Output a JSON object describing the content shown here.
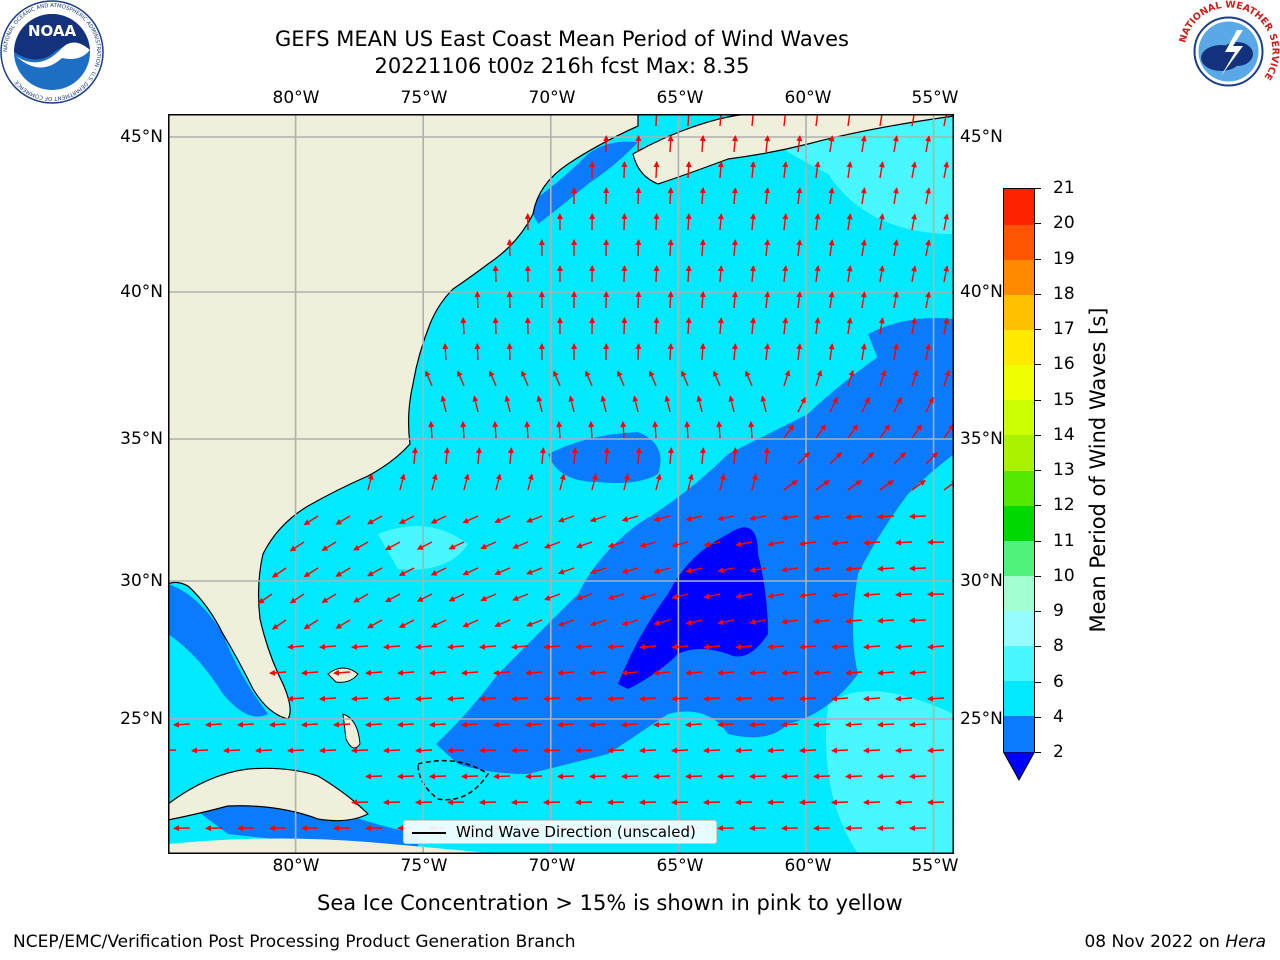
{
  "header": {
    "title_line1": "GEFS MEAN US East Coast Mean Period of Wind Waves",
    "title_line2": "20221106 t00z 216h fcst   Max: 8.35"
  },
  "logos": {
    "noaa_text": "NOAA",
    "noaa_ring_text": "NATIONAL OCEANIC AND ATMOSPHERIC ADMINISTRATION · U.S. DEPARTMENT OF COMMERCE",
    "nws_ring_text": "NATIONAL WEATHER SERVICE"
  },
  "map": {
    "longitude_labels": [
      "80°W",
      "75°W",
      "70°W",
      "65°W",
      "60°W",
      "55°W"
    ],
    "latitude_labels": [
      "45°N",
      "40°N",
      "35°N",
      "30°N",
      "25°N"
    ],
    "longitude_values": [
      -80,
      -75,
      -70,
      -65,
      -60,
      -55
    ],
    "latitude_values": [
      45,
      40,
      35,
      30,
      25
    ],
    "extent": {
      "lon_min": -85,
      "lon_max": -54.2,
      "lat_min": 20,
      "lat_max": 46
    },
    "land_color": "#efefdb",
    "gridline_color": "#b0b0b0",
    "arrow_color": "#ff0000",
    "legend_label": "Wind Wave Direction (unscaled)"
  },
  "colorbar": {
    "label": "Mean Period of Wind Waves [s]",
    "tick_labels": [
      "2",
      "4",
      "6",
      "8",
      "9",
      "10",
      "11",
      "12",
      "13",
      "14",
      "15",
      "16",
      "17",
      "18",
      "19",
      "20",
      "21"
    ],
    "levels": [
      2,
      4,
      6,
      8,
      9,
      10,
      11,
      12,
      13,
      14,
      15,
      16,
      17,
      18,
      19,
      20,
      21
    ],
    "colors": [
      "#0a7bff",
      "#00eaff",
      "#48f7ff",
      "#97fcff",
      "#a3ffd2",
      "#4ff27b",
      "#00d900",
      "#55e800",
      "#aaf200",
      "#ccff00",
      "#eeff00",
      "#ffea00",
      "#ffc000",
      "#ff8a00",
      "#ff5500",
      "#ff2200",
      "#ff0000"
    ],
    "under_color": "#0000ff"
  },
  "footer": {
    "ice_note": "Sea Ice Concentration > 15% is shown in pink to yellow",
    "credit": "NCEP/EMC/Verification Post Processing Product Generation Branch",
    "date_prefix": "08 Nov 2022 on ",
    "date_host": "Hera"
  }
}
